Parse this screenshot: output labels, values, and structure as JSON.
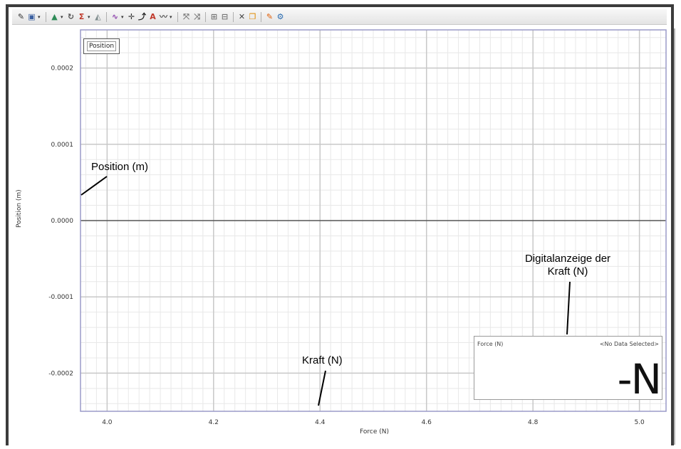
{
  "toolbar": {
    "items": [
      {
        "name": "edit-icon",
        "glyph": "✎",
        "color": "#333333"
      },
      {
        "name": "graph-select-icon",
        "glyph": "▣",
        "color": "#3a5fa0",
        "dropdown": true
      },
      {
        "name": "scale-icon",
        "glyph": "▲",
        "color": "#2e8b57",
        "dropdown": true
      },
      {
        "name": "refresh-icon",
        "glyph": "↻",
        "color": "#555555"
      },
      {
        "name": "sigma-icon",
        "glyph": "Σ",
        "color": "#c0392b",
        "dropdown": true
      },
      {
        "name": "area-icon",
        "glyph": "◭",
        "color": "#7f8c8d"
      },
      {
        "name": "curve-fit-icon",
        "glyph": "∿",
        "color": "#8e44ad",
        "dropdown": true
      },
      {
        "name": "crosshair-icon",
        "glyph": "✛",
        "color": "#333333"
      },
      {
        "name": "slope-icon",
        "glyph": "⤴",
        "color": "#222222"
      },
      {
        "name": "text-annotation-icon",
        "glyph": "A",
        "color": "#c0392b"
      },
      {
        "name": "series-icon",
        "glyph": "〰",
        "color": "#555555",
        "dropdown": true
      },
      {
        "name": "zoom-icon",
        "glyph": "⤧",
        "color": "#777777"
      },
      {
        "name": "zoom-fit-icon",
        "glyph": "⤨",
        "color": "#777777"
      },
      {
        "name": "axis-icon",
        "glyph": "⊞",
        "color": "#777777"
      },
      {
        "name": "grid-icon",
        "glyph": "⊟",
        "color": "#777777"
      },
      {
        "name": "delete-icon",
        "glyph": "✕",
        "color": "#444444"
      },
      {
        "name": "copy-icon",
        "glyph": "❐",
        "color": "#e08a00"
      },
      {
        "name": "marker-icon",
        "glyph": "✎",
        "color": "#e05a00"
      },
      {
        "name": "settings-icon",
        "glyph": "⚙",
        "color": "#2b6cb0"
      }
    ]
  },
  "chart_data": {
    "type": "line",
    "xlabel": "Force (N)",
    "ylabel": "Position (m)",
    "xlim": [
      3.95,
      5.05
    ],
    "ylim": [
      -0.00025,
      0.00025
    ],
    "x_ticks": [
      "4.0",
      "4.2",
      "4.4",
      "4.6",
      "4.8",
      "5.0"
    ],
    "x_tick_values": [
      4.0,
      4.2,
      4.4,
      4.6,
      4.8,
      5.0
    ],
    "y_ticks": [
      "0.0002",
      "0.0001",
      "0.0000",
      "-0.0001",
      "-0.0002"
    ],
    "y_tick_values": [
      0.0002,
      0.0001,
      0.0,
      -0.0001,
      -0.0002
    ],
    "series": [],
    "legend": "Position",
    "legend_position": "top-left",
    "grid": true
  },
  "display": {
    "label": "Force (N)",
    "state": "<No Data Selected>",
    "value": "-N"
  },
  "annotations": {
    "position": "Position (m)",
    "force": "Kraft (N)",
    "digital_line1": "Digitalanzeige der",
    "digital_line2": "Kraft (N)"
  },
  "colors": {
    "grid_major": "#c8c8c8",
    "grid_minor": "#e8e8e8",
    "plot_border": "#9a9ac8",
    "zero_line": "#555555"
  }
}
